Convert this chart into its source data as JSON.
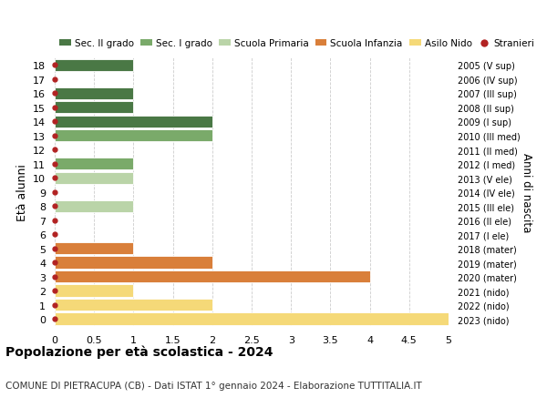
{
  "ages": [
    18,
    17,
    16,
    15,
    14,
    13,
    12,
    11,
    10,
    9,
    8,
    7,
    6,
    5,
    4,
    3,
    2,
    1,
    0
  ],
  "right_labels": [
    "2005 (V sup)",
    "2006 (IV sup)",
    "2007 (III sup)",
    "2008 (II sup)",
    "2009 (I sup)",
    "2010 (III med)",
    "2011 (II med)",
    "2012 (I med)",
    "2013 (V ele)",
    "2014 (IV ele)",
    "2015 (III ele)",
    "2016 (II ele)",
    "2017 (I ele)",
    "2018 (mater)",
    "2019 (mater)",
    "2020 (mater)",
    "2021 (nido)",
    "2022 (nido)",
    "2023 (nido)"
  ],
  "values": [
    1,
    0,
    1,
    1,
    2,
    2,
    0,
    1,
    1,
    0,
    1,
    0,
    0,
    1,
    2,
    4,
    1,
    2,
    5
  ],
  "bar_colors": [
    "#4a7845",
    "#4a7845",
    "#4a7845",
    "#4a7845",
    "#4a7845",
    "#7aaa6a",
    "#7aaa6a",
    "#7aaa6a",
    "#bad4a8",
    "#bad4a8",
    "#bad4a8",
    "#bad4a8",
    "#bad4a8",
    "#d97f3a",
    "#d97f3a",
    "#d97f3a",
    "#f5d978",
    "#f5d978",
    "#f5d978"
  ],
  "stranieri_color": "#b22222",
  "legend_labels": [
    "Sec. II grado",
    "Sec. I grado",
    "Scuola Primaria",
    "Scuola Infanzia",
    "Asilo Nido",
    "Stranieri"
  ],
  "legend_colors": [
    "#4a7845",
    "#7aaa6a",
    "#bad4a8",
    "#d97f3a",
    "#f5d978",
    "#b22222"
  ],
  "title_bold": "Popolazione per età scolastica - 2024",
  "subtitle": "COMUNE DI PIETRACUPA (CB) - Dati ISTAT 1° gennaio 2024 - Elaborazione TUTTITALIA.IT",
  "ylabel": "Età alunni",
  "y2label": "Anni di nascita",
  "xlim": [
    0,
    5.0
  ],
  "xticks": [
    0,
    0.5,
    1.0,
    1.5,
    2.0,
    2.5,
    3.0,
    3.5,
    4.0,
    4.5,
    5.0
  ],
  "bar_height": 0.85,
  "background_color": "#ffffff",
  "grid_color": "#cccccc"
}
